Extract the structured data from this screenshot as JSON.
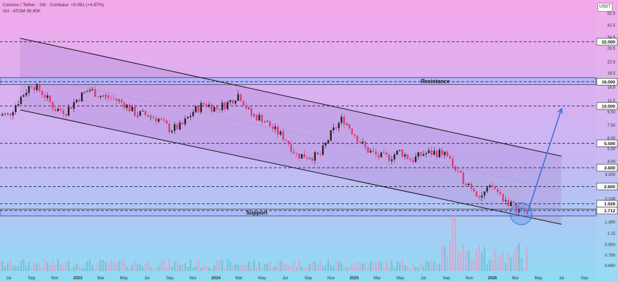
{
  "header": {
    "symbol_line": "Cosmos / Tether · 1W · Coinbase",
    "change": "+0.081 (+4.97%)",
    "volume_line": "Vol · ATOM  39.85K"
  },
  "currency_badge": "USDT",
  "colors": {
    "bg_top": "#f4a8ea",
    "bg_bottom": "#8fdcf4",
    "bull": "#222222",
    "bear": "#e0386e",
    "arrow": "#3a6fd8",
    "zone": "#a8b4ff"
  },
  "chart_data": {
    "type": "candlestick",
    "scale": "log",
    "y_ticks": [
      52.5,
      42.5,
      34.5,
      28.5,
      22.5,
      18.5,
      14.5,
      11.5,
      9.5,
      7.5,
      6.0,
      5.0,
      4.0,
      3.2,
      2.1,
      1.4,
      1.15,
      0.95,
      0.79,
      0.66
    ],
    "levels": [
      32.0,
      16.0,
      10.5,
      5.5,
      3.6,
      2.6,
      1.928,
      1.712
    ],
    "level_labels": [
      "32.000",
      "16.000",
      "10.500",
      "5.500",
      "3.600",
      "2.600",
      "1.928",
      "1.712"
    ],
    "x_labels": [
      "Jul",
      "Sep",
      "Nov",
      "2023",
      "Mar",
      "May",
      "Jul",
      "Sep",
      "Nov",
      "2024",
      "Mar",
      "May",
      "Jul",
      "Sep",
      "Nov",
      "2025",
      "Mar",
      "May",
      "Jul",
      "Sep",
      "Nov",
      "2026",
      "Mar",
      "May",
      "Jul",
      "Sep"
    ],
    "zones": [
      {
        "label": "Resistance",
        "low": 15.2,
        "high": 17.2
      },
      {
        "label": "Support",
        "low": 1.56,
        "high": 1.76
      }
    ],
    "channel": {
      "upper": {
        "from": [
          "2022-08",
          34.0
        ],
        "to": [
          "2026-07",
          4.4
        ]
      },
      "lower": {
        "from": [
          "2022-08",
          9.8
        ],
        "to": [
          "2026-07",
          1.35
        ]
      }
    },
    "projection": {
      "from": [
        "2026-04",
        1.6
      ],
      "to": [
        "2026-07",
        10.0
      ]
    },
    "price_path": [
      [
        "2022-07",
        9.0
      ],
      [
        "2022-08",
        12.0
      ],
      [
        "2022-09",
        15.5
      ],
      [
        "2022-10",
        13.0
      ],
      [
        "2022-11",
        10.0
      ],
      [
        "2022-12",
        9.6
      ],
      [
        "2023-01",
        12.0
      ],
      [
        "2023-02",
        14.0
      ],
      [
        "2023-03",
        12.5
      ],
      [
        "2023-04",
        12.0
      ],
      [
        "2023-05",
        11.0
      ],
      [
        "2023-06",
        9.2
      ],
      [
        "2023-07",
        9.0
      ],
      [
        "2023-08",
        8.4
      ],
      [
        "2023-09",
        7.0
      ],
      [
        "2023-10",
        7.4
      ],
      [
        "2023-11",
        9.5
      ],
      [
        "2023-12",
        11.0
      ],
      [
        "2024-01",
        10.0
      ],
      [
        "2024-02",
        11.0
      ],
      [
        "2024-03",
        13.0
      ],
      [
        "2024-04",
        9.0
      ],
      [
        "2024-05",
        8.5
      ],
      [
        "2024-06",
        7.0
      ],
      [
        "2024-07",
        6.0
      ],
      [
        "2024-08",
        4.5
      ],
      [
        "2024-09",
        4.4
      ],
      [
        "2024-10",
        4.4
      ],
      [
        "2024-11",
        6.5
      ],
      [
        "2024-12",
        8.5
      ],
      [
        "2025-01",
        6.5
      ],
      [
        "2025-02",
        5.0
      ],
      [
        "2025-03",
        4.4
      ],
      [
        "2025-04",
        4.3
      ],
      [
        "2025-05",
        4.8
      ],
      [
        "2025-06",
        4.1
      ],
      [
        "2025-07",
        4.6
      ],
      [
        "2025-08",
        4.7
      ],
      [
        "2025-09",
        4.6
      ],
      [
        "2025-10",
        3.2
      ],
      [
        "2025-11",
        2.7
      ],
      [
        "2025-12",
        2.2
      ],
      [
        "2026-01",
        2.6
      ],
      [
        "2026-02",
        2.1
      ],
      [
        "2026-03",
        1.8
      ],
      [
        "2026-04",
        1.65
      ]
    ]
  }
}
